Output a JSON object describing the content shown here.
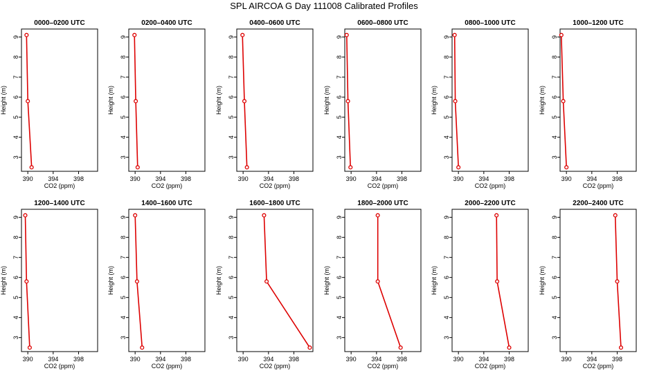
{
  "figure_title": "SPL AIRCOA G  Day 111008  Calibrated Profiles",
  "colors": {
    "profile": "#dd0000",
    "axis": "#000000"
  },
  "chart_data": [
    {
      "type": "line",
      "title": "0000–0200 UTC",
      "xlabel": "CO2 (ppm)",
      "ylabel": "Height (m)",
      "xlim": [
        389,
        401
      ],
      "ylim": [
        2.3,
        9.4
      ],
      "x_ticks": [
        390,
        394,
        398
      ],
      "y_ticks": [
        3,
        4,
        5,
        6,
        7,
        8,
        9
      ],
      "x": [
        389.8,
        390.0,
        390.6
      ],
      "y": [
        9.1,
        5.8,
        2.5
      ]
    },
    {
      "type": "line",
      "title": "0200–0400 UTC",
      "xlabel": "CO2 (ppm)",
      "ylabel": "Height (m)",
      "xlim": [
        389,
        401
      ],
      "ylim": [
        2.3,
        9.4
      ],
      "x_ticks": [
        390,
        394,
        398
      ],
      "y_ticks": [
        3,
        4,
        5,
        6,
        7,
        8,
        9
      ],
      "x": [
        389.9,
        390.1,
        390.4
      ],
      "y": [
        9.1,
        5.8,
        2.5
      ]
    },
    {
      "type": "line",
      "title": "0400–0600 UTC",
      "xlabel": "CO2 (ppm)",
      "ylabel": "Height (m)",
      "xlim": [
        389,
        401
      ],
      "ylim": [
        2.3,
        9.4
      ],
      "x_ticks": [
        390,
        394,
        398
      ],
      "y_ticks": [
        3,
        4,
        5,
        6,
        7,
        8,
        9
      ],
      "x": [
        389.9,
        390.2,
        390.6
      ],
      "y": [
        9.1,
        5.8,
        2.5
      ]
    },
    {
      "type": "line",
      "title": "0600–0800 UTC",
      "xlabel": "CO2 (ppm)",
      "ylabel": "Height (m)",
      "xlim": [
        389,
        401
      ],
      "ylim": [
        2.3,
        9.4
      ],
      "x_ticks": [
        390,
        394,
        398
      ],
      "y_ticks": [
        3,
        4,
        5,
        6,
        7,
        8,
        9
      ],
      "x": [
        389.3,
        389.5,
        389.9
      ],
      "y": [
        9.1,
        5.8,
        2.5
      ]
    },
    {
      "type": "line",
      "title": "0800–1000 UTC",
      "xlabel": "CO2 (ppm)",
      "ylabel": "Height (m)",
      "xlim": [
        389,
        401
      ],
      "ylim": [
        2.3,
        9.4
      ],
      "x_ticks": [
        390,
        394,
        398
      ],
      "y_ticks": [
        3,
        4,
        5,
        6,
        7,
        8,
        9
      ],
      "x": [
        389.4,
        389.5,
        390.0
      ],
      "y": [
        9.1,
        5.8,
        2.5
      ]
    },
    {
      "type": "line",
      "title": "1000–1200 UTC",
      "xlabel": "CO2 (ppm)",
      "ylabel": "Height (m)",
      "xlim": [
        389,
        401
      ],
      "ylim": [
        2.3,
        9.4
      ],
      "x_ticks": [
        390,
        394,
        398
      ],
      "y_ticks": [
        3,
        4,
        5,
        6,
        7,
        8,
        9
      ],
      "x": [
        389.2,
        389.5,
        390.0
      ],
      "y": [
        9.1,
        5.8,
        2.5
      ]
    },
    {
      "type": "line",
      "title": "1200–1400 UTC",
      "xlabel": "CO2 (ppm)",
      "ylabel": "Height (m)",
      "xlim": [
        389,
        401
      ],
      "ylim": [
        2.3,
        9.4
      ],
      "x_ticks": [
        390,
        394,
        398
      ],
      "y_ticks": [
        3,
        4,
        5,
        6,
        7,
        8,
        9
      ],
      "x": [
        389.6,
        389.8,
        390.3
      ],
      "y": [
        9.1,
        5.8,
        2.5
      ]
    },
    {
      "type": "line",
      "title": "1400–1600 UTC",
      "xlabel": "CO2 (ppm)",
      "ylabel": "Height (m)",
      "xlim": [
        389,
        401
      ],
      "ylim": [
        2.3,
        9.4
      ],
      "x_ticks": [
        390,
        394,
        398
      ],
      "y_ticks": [
        3,
        4,
        5,
        6,
        7,
        8,
        9
      ],
      "x": [
        390.0,
        390.3,
        391.1
      ],
      "y": [
        9.1,
        5.8,
        2.5
      ]
    },
    {
      "type": "line",
      "title": "1600–1800 UTC",
      "xlabel": "CO2 (ppm)",
      "ylabel": "Height (m)",
      "xlim": [
        389,
        401
      ],
      "ylim": [
        2.3,
        9.4
      ],
      "x_ticks": [
        390,
        394,
        398
      ],
      "y_ticks": [
        3,
        4,
        5,
        6,
        7,
        8,
        9
      ],
      "x": [
        393.3,
        393.7,
        400.5
      ],
      "y": [
        9.1,
        5.8,
        2.5
      ]
    },
    {
      "type": "line",
      "title": "1800–2000 UTC",
      "xlabel": "CO2 (ppm)",
      "ylabel": "Height (m)",
      "xlim": [
        389,
        401
      ],
      "ylim": [
        2.3,
        9.4
      ],
      "x_ticks": [
        390,
        394,
        398
      ],
      "y_ticks": [
        3,
        4,
        5,
        6,
        7,
        8,
        9
      ],
      "x": [
        394.2,
        394.2,
        397.8
      ],
      "y": [
        9.1,
        5.8,
        2.5
      ]
    },
    {
      "type": "line",
      "title": "2000–2200 UTC",
      "xlabel": "CO2 (ppm)",
      "ylabel": "Height (m)",
      "xlim": [
        389,
        401
      ],
      "ylim": [
        2.3,
        9.4
      ],
      "x_ticks": [
        390,
        394,
        398
      ],
      "y_ticks": [
        3,
        4,
        5,
        6,
        7,
        8,
        9
      ],
      "x": [
        396.0,
        396.1,
        398.0
      ],
      "y": [
        9.1,
        5.8,
        2.5
      ]
    },
    {
      "type": "line",
      "title": "2200–2400 UTC",
      "xlabel": "CO2 (ppm)",
      "ylabel": "Height (m)",
      "xlim": [
        389,
        401
      ],
      "ylim": [
        2.3,
        9.4
      ],
      "x_ticks": [
        390,
        394,
        398
      ],
      "y_ticks": [
        3,
        4,
        5,
        6,
        7,
        8,
        9
      ],
      "x": [
        397.7,
        398.0,
        398.6
      ],
      "y": [
        9.1,
        5.8,
        2.5
      ]
    }
  ]
}
